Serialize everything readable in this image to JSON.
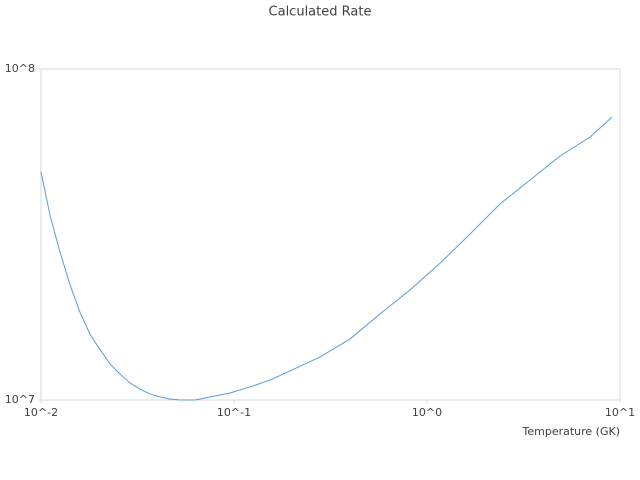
{
  "chart_data": {
    "type": "line",
    "title": "Calculated Rate",
    "x_label": "Temperature (GK)",
    "x_log": true,
    "y_log": true,
    "grid": false,
    "xlim": [
      0.01,
      10
    ],
    "ylim": [
      10000000,
      100000000
    ],
    "xticks": [
      {
        "value": 0.01,
        "label": "10^-2"
      },
      {
        "value": 0.1,
        "label": "10^-1"
      },
      {
        "value": 1,
        "label": "10^0"
      },
      {
        "value": 10,
        "label": "10^1"
      }
    ],
    "yticks": [
      {
        "value": 10000000,
        "label": "10^7"
      },
      {
        "value": 100000000,
        "label": "10^8"
      }
    ],
    "series": [
      {
        "color": "#5b9bd5",
        "x": [
          0.01,
          0.01113,
          0.01254,
          0.01413,
          0.01592,
          0.01795,
          0.02022,
          0.02279,
          0.02567,
          0.02893,
          0.0326,
          0.0367,
          0.0414,
          0.0466,
          0.0525,
          0.0628,
          0.0751,
          0.0953,
          0.121,
          0.154,
          0.195,
          0.279,
          0.399,
          0.571,
          0.816,
          1.167,
          1.67,
          2.39,
          3.42,
          4.89,
          7.0,
          9.1
        ],
        "values": [
          48900000,
          36200000,
          28000000,
          22300000,
          18400000,
          15800000,
          14200000,
          12850000,
          11980000,
          11260000,
          10790000,
          10430000,
          10210000,
          10070000,
          10000000,
          10000000,
          10210000,
          10500000,
          10950000,
          11490000,
          12240000,
          13490000,
          15280000,
          18200000,
          21500000,
          25900000,
          31700000,
          39100000,
          46200000,
          54600000,
          62300000,
          71600000
        ]
      }
    ]
  }
}
